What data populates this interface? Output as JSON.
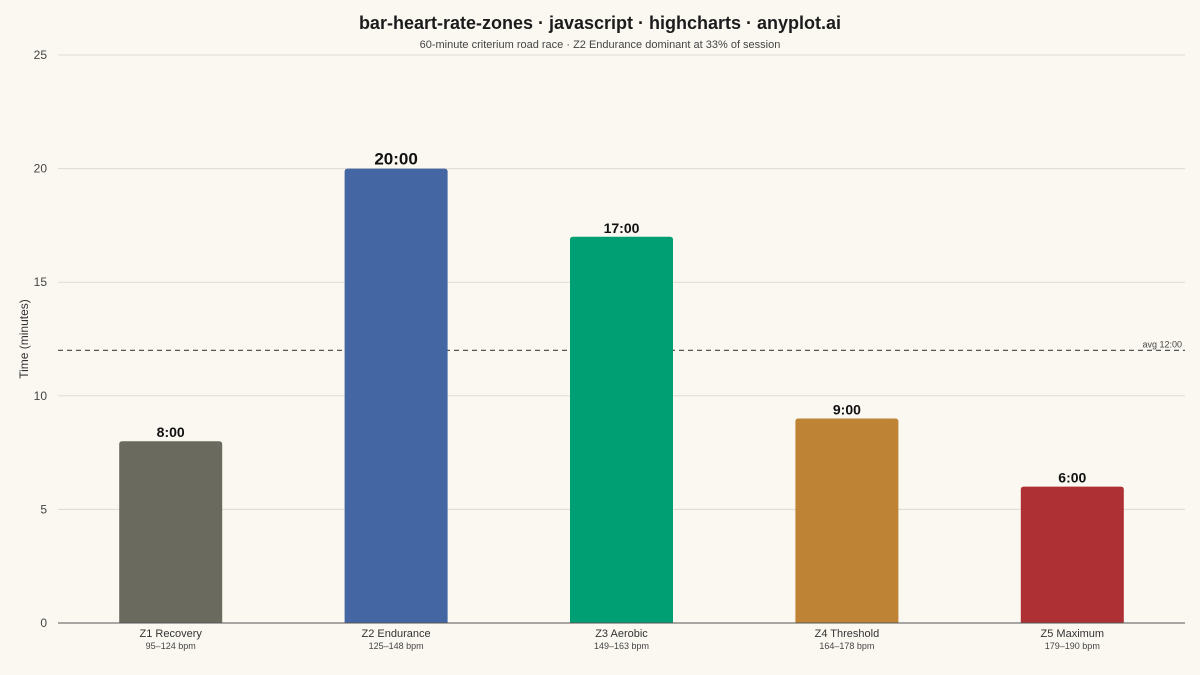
{
  "chart_data": {
    "type": "bar",
    "title": "bar-heart-rate-zones · javascript · highcharts · anyplot.ai",
    "subtitle": "60-minute criterium road race · Z2 Endurance dominant at 33% of session",
    "ylabel": "Time (minutes)",
    "ylim": [
      0,
      25
    ],
    "yticks": [
      0,
      5,
      10,
      15,
      20,
      25
    ],
    "grid": true,
    "categories": [
      "Z1 Recovery",
      "Z2 Endurance",
      "Z3 Aerobic",
      "Z4 Threshold",
      "Z5 Maximum"
    ],
    "ranges": [
      "95–124 bpm",
      "125–148 bpm",
      "149–163 bpm",
      "164–178 bpm",
      "179–190 bpm"
    ],
    "values": [
      8,
      20,
      17,
      9,
      6
    ],
    "value_labels": [
      "8:00",
      "20:00",
      "17:00",
      "9:00",
      "6:00"
    ],
    "colors": [
      "#6B6A5E",
      "#4466A3",
      "#009E73",
      "#BF8335",
      "#AE3034"
    ],
    "average": {
      "value": 12,
      "label": "avg 12:00"
    }
  }
}
